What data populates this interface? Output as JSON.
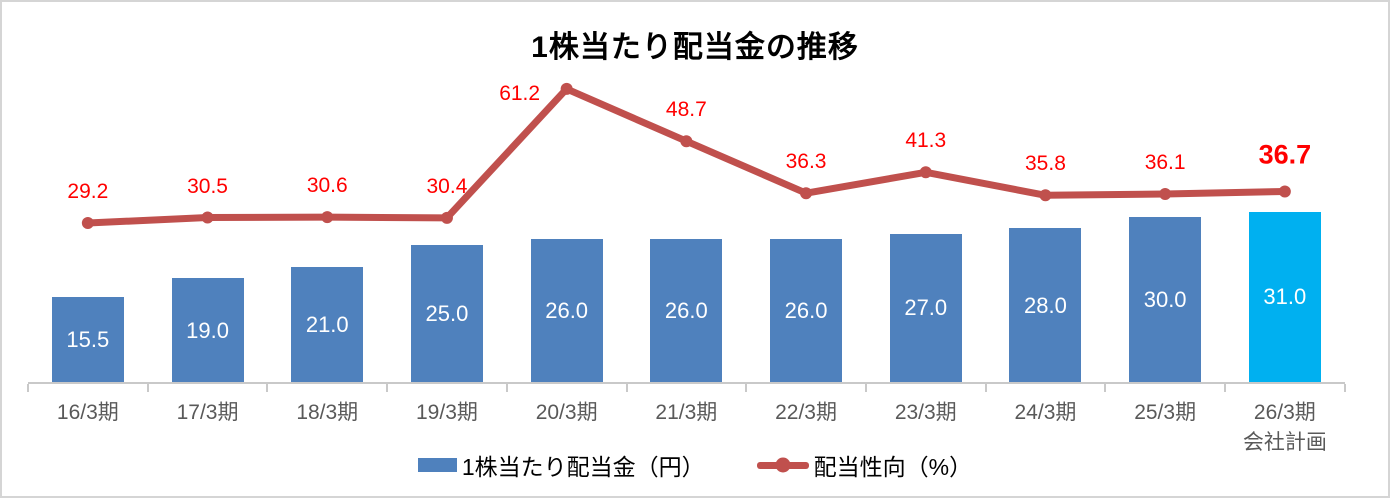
{
  "window": {
    "background": "#FFFFFF",
    "border_color": "#D5D5D5"
  },
  "chart_data": {
    "type": "combo",
    "title": "1株当たり配当金の推移",
    "categories": [
      "16/3期",
      "17/3期",
      "18/3期",
      "19/3期",
      "20/3期",
      "21/3期",
      "22/3期",
      "23/3期",
      "24/3期",
      "25/3期",
      "26/3期"
    ],
    "category_sublabels": [
      "",
      "",
      "",
      "",
      "",
      "",
      "",
      "",
      "",
      "",
      "会社計画"
    ],
    "series": [
      {
        "name": "1株当たり配当金（円）",
        "type": "bar",
        "values": [
          15.5,
          19.0,
          21.0,
          25.0,
          26.0,
          26.0,
          26.0,
          27.0,
          28.0,
          30.0,
          31.0
        ],
        "color": "#4F81BD",
        "highlight_index": 10,
        "highlight_color": "#00B0F0",
        "value_label_color": "#FFFFFF"
      },
      {
        "name": "配当性向（%）",
        "type": "line",
        "values": [
          29.2,
          30.5,
          30.6,
          30.4,
          61.2,
          48.7,
          36.3,
          41.3,
          35.8,
          36.1,
          36.7
        ],
        "color": "#C0504D",
        "value_label_color": "#FF0000",
        "emphasis_index": 10,
        "label_offsets": {
          "4": [
            -47,
            5
          ],
          "10": [
            0,
            -37
          ]
        }
      }
    ],
    "legend_position": "bottom",
    "gridlines": false,
    "x_axis": {
      "visible": true,
      "color": "#C9C9C9",
      "label_color": "#595959"
    },
    "y_axis": {
      "visible": false
    }
  }
}
